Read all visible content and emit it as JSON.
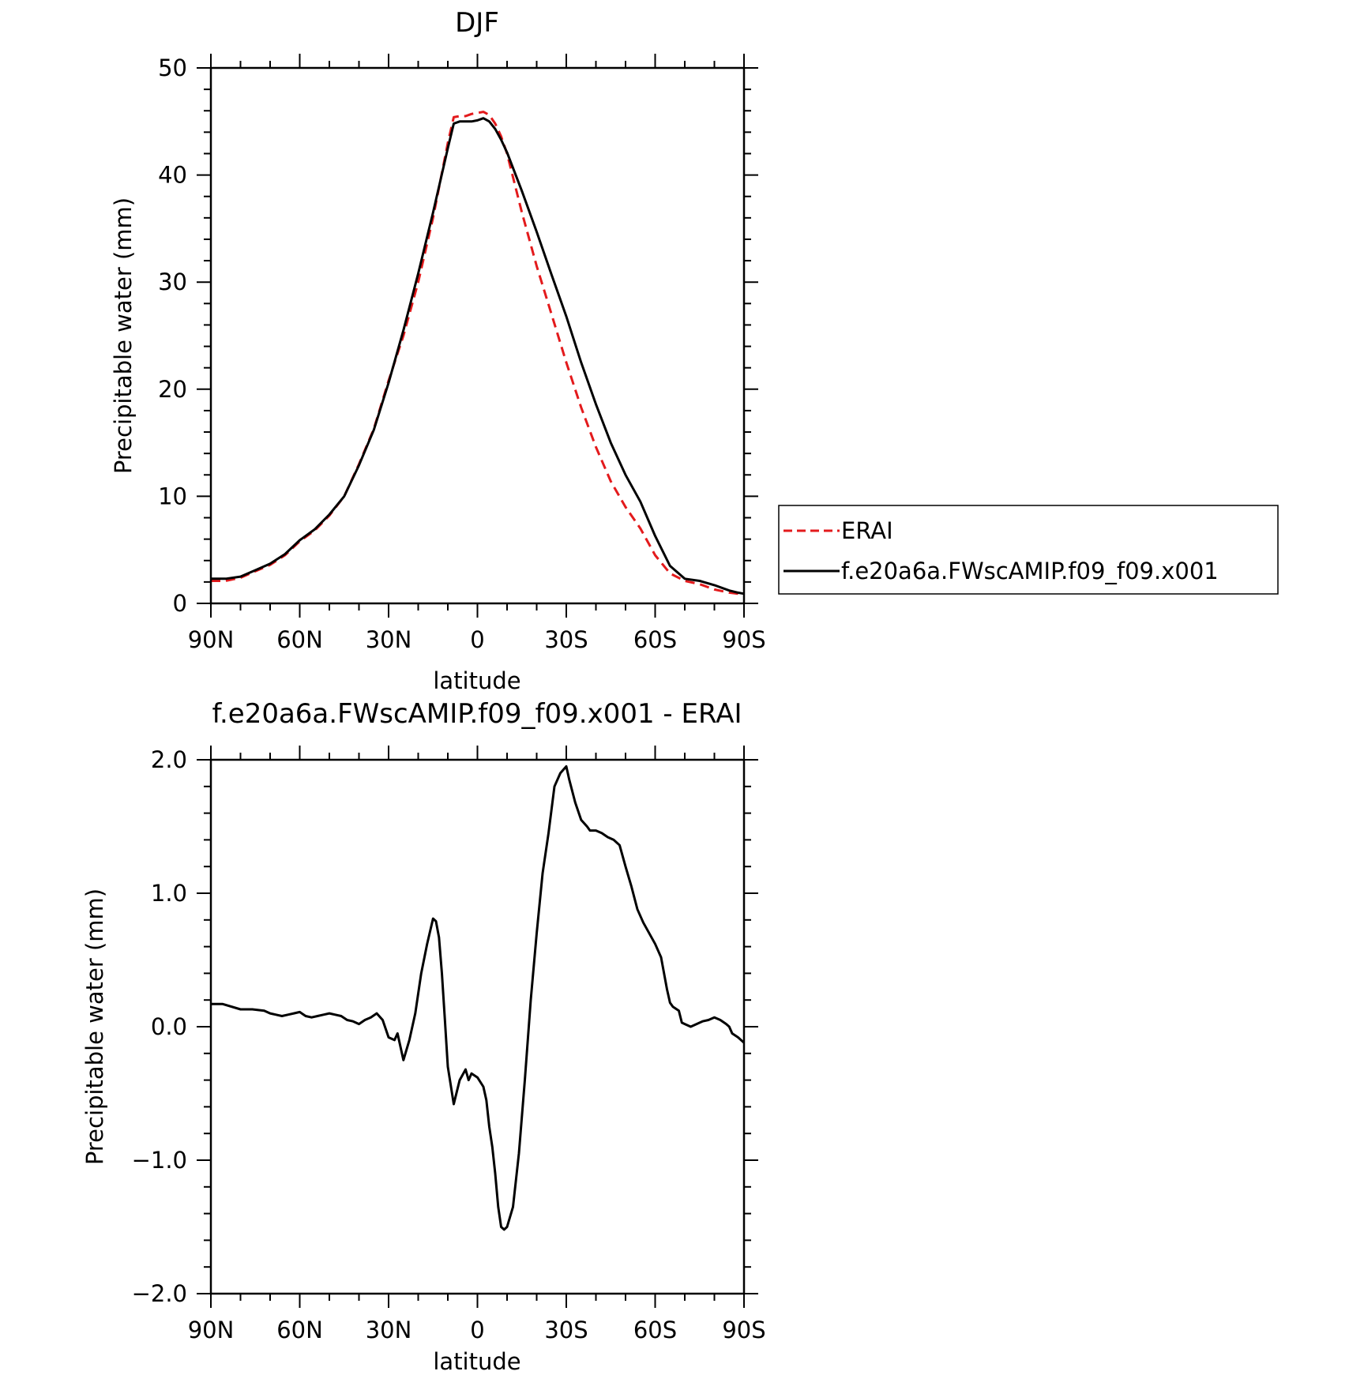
{
  "chart_data": [
    {
      "type": "line",
      "title": "DJF",
      "xlabel": "latitude",
      "ylabel": "Precipitable water (mm)",
      "xticks": [
        "90N",
        "60N",
        "30N",
        "0",
        "30S",
        "60S",
        "90S"
      ],
      "yticks": [
        "0",
        "10",
        "20",
        "30",
        "40",
        "50"
      ],
      "ylim": [
        0,
        50
      ],
      "xlim": [
        90,
        -90
      ],
      "x_note": "latitude in degrees, positive = N, negative = S",
      "legend": {
        "placement": "right"
      },
      "series": [
        {
          "name": "ERAI",
          "color": "#e31a1c",
          "style": "dashed",
          "x": [
            90,
            85,
            80,
            75,
            70,
            65,
            60,
            55,
            50,
            45,
            40,
            35,
            30,
            25,
            20,
            15,
            10,
            8,
            6,
            4,
            2,
            0,
            -2,
            -4,
            -6,
            -8,
            -10,
            -15,
            -20,
            -25,
            -30,
            -35,
            -40,
            -45,
            -50,
            -55,
            -60,
            -65,
            -70,
            -75,
            -80,
            -85,
            -88,
            -90
          ],
          "values": [
            2.1,
            2.1,
            2.4,
            3.0,
            3.6,
            4.5,
            5.8,
            6.8,
            8.2,
            10.0,
            13.0,
            16.3,
            20.8,
            25.0,
            30.0,
            36.0,
            43.0,
            45.4,
            45.5,
            45.5,
            45.7,
            45.8,
            45.9,
            45.6,
            44.8,
            43.6,
            42.0,
            36.5,
            31.5,
            27.0,
            22.5,
            18.3,
            14.6,
            11.4,
            9.0,
            7.0,
            4.5,
            2.8,
            2.1,
            1.8,
            1.3,
            1.0,
            0.9,
            0.8
          ]
        },
        {
          "name": "f.e20a6a.FWscAMIP.f09_f09.x001",
          "color": "#000000",
          "style": "solid",
          "x": [
            90,
            85,
            80,
            75,
            70,
            65,
            60,
            55,
            50,
            45,
            40,
            35,
            30,
            25,
            20,
            15,
            10,
            8,
            6,
            4,
            2,
            0,
            -2,
            -4,
            -6,
            -8,
            -10,
            -15,
            -20,
            -25,
            -30,
            -35,
            -40,
            -45,
            -50,
            -55,
            -60,
            -65,
            -70,
            -75,
            -80,
            -85,
            -88,
            -90
          ],
          "values": [
            2.3,
            2.3,
            2.5,
            3.1,
            3.7,
            4.6,
            5.9,
            6.9,
            8.3,
            10.0,
            12.9,
            16.2,
            20.6,
            25.5,
            30.8,
            36.5,
            42.5,
            44.8,
            45.0,
            45.0,
            45.0,
            45.1,
            45.3,
            45.0,
            44.3,
            43.3,
            42.1,
            38.5,
            34.7,
            30.7,
            26.8,
            22.5,
            18.6,
            15.0,
            12.0,
            9.5,
            6.3,
            3.5,
            2.3,
            2.1,
            1.7,
            1.2,
            1.0,
            0.9
          ]
        }
      ]
    },
    {
      "type": "line",
      "title": "f.e20a6a.FWscAMIP.f09_f09.x001 - ERAI",
      "xlabel": "latitude",
      "ylabel": "Precipitable water (mm)",
      "xticks": [
        "90N",
        "60N",
        "30N",
        "0",
        "30S",
        "60S",
        "90S"
      ],
      "yticks": [
        "2.0",
        "1.0",
        "0.0",
        "−1.0",
        "−2.0"
      ],
      "ylim": [
        -2.0,
        2.0
      ],
      "xlim": [
        90,
        -90
      ],
      "series": [
        {
          "color": "#000000",
          "style": "solid",
          "x": [
            90,
            86,
            80,
            76,
            72,
            70,
            68,
            66,
            64,
            62,
            60,
            58,
            56,
            54,
            52,
            50,
            48,
            46,
            44,
            42,
            40,
            38,
            36,
            34,
            32,
            30,
            28,
            27,
            25,
            23,
            21,
            19,
            17,
            15,
            14,
            13,
            12,
            11,
            10,
            8,
            6,
            4,
            3,
            2,
            0,
            -2,
            -3,
            -4,
            -5,
            -6,
            -7,
            -8,
            -9,
            -10,
            -12,
            -14,
            -16,
            -18,
            -20,
            -22,
            -24,
            -26,
            -28,
            -30,
            -31,
            -33,
            -35,
            -37,
            -38,
            -40,
            -42,
            -44,
            -46,
            -48,
            -50,
            -52,
            -54,
            -56,
            -58,
            -60,
            -62,
            -64,
            -65,
            -66,
            -68,
            -69,
            -70,
            -72,
            -74,
            -76,
            -78,
            -80,
            -81,
            -82,
            -84,
            -85,
            -86,
            -88,
            -90
          ],
          "values": [
            0.17,
            0.17,
            0.13,
            0.13,
            0.12,
            0.1,
            0.09,
            0.08,
            0.09,
            0.1,
            0.11,
            0.08,
            0.07,
            0.08,
            0.09,
            0.1,
            0.09,
            0.08,
            0.05,
            0.04,
            0.02,
            0.05,
            0.07,
            0.1,
            0.05,
            -0.08,
            -0.1,
            -0.05,
            -0.25,
            -0.1,
            0.1,
            0.4,
            0.62,
            0.81,
            0.79,
            0.67,
            0.4,
            0.05,
            -0.3,
            -0.58,
            -0.4,
            -0.32,
            -0.4,
            -0.35,
            -0.38,
            -0.45,
            -0.55,
            -0.75,
            -0.9,
            -1.1,
            -1.35,
            -1.5,
            -1.52,
            -1.5,
            -1.35,
            -0.95,
            -0.4,
            0.2,
            0.7,
            1.15,
            1.45,
            1.8,
            1.9,
            1.95,
            1.85,
            1.68,
            1.55,
            1.5,
            1.47,
            1.47,
            1.45,
            1.42,
            1.4,
            1.36,
            1.2,
            1.05,
            0.88,
            0.78,
            0.7,
            0.62,
            0.52,
            0.28,
            0.18,
            0.15,
            0.12,
            0.03,
            0.02,
            0.0,
            0.02,
            0.04,
            0.05,
            0.07,
            0.06,
            0.05,
            0.02,
            0.0,
            -0.05,
            -0.08,
            -0.12
          ]
        }
      ]
    }
  ]
}
